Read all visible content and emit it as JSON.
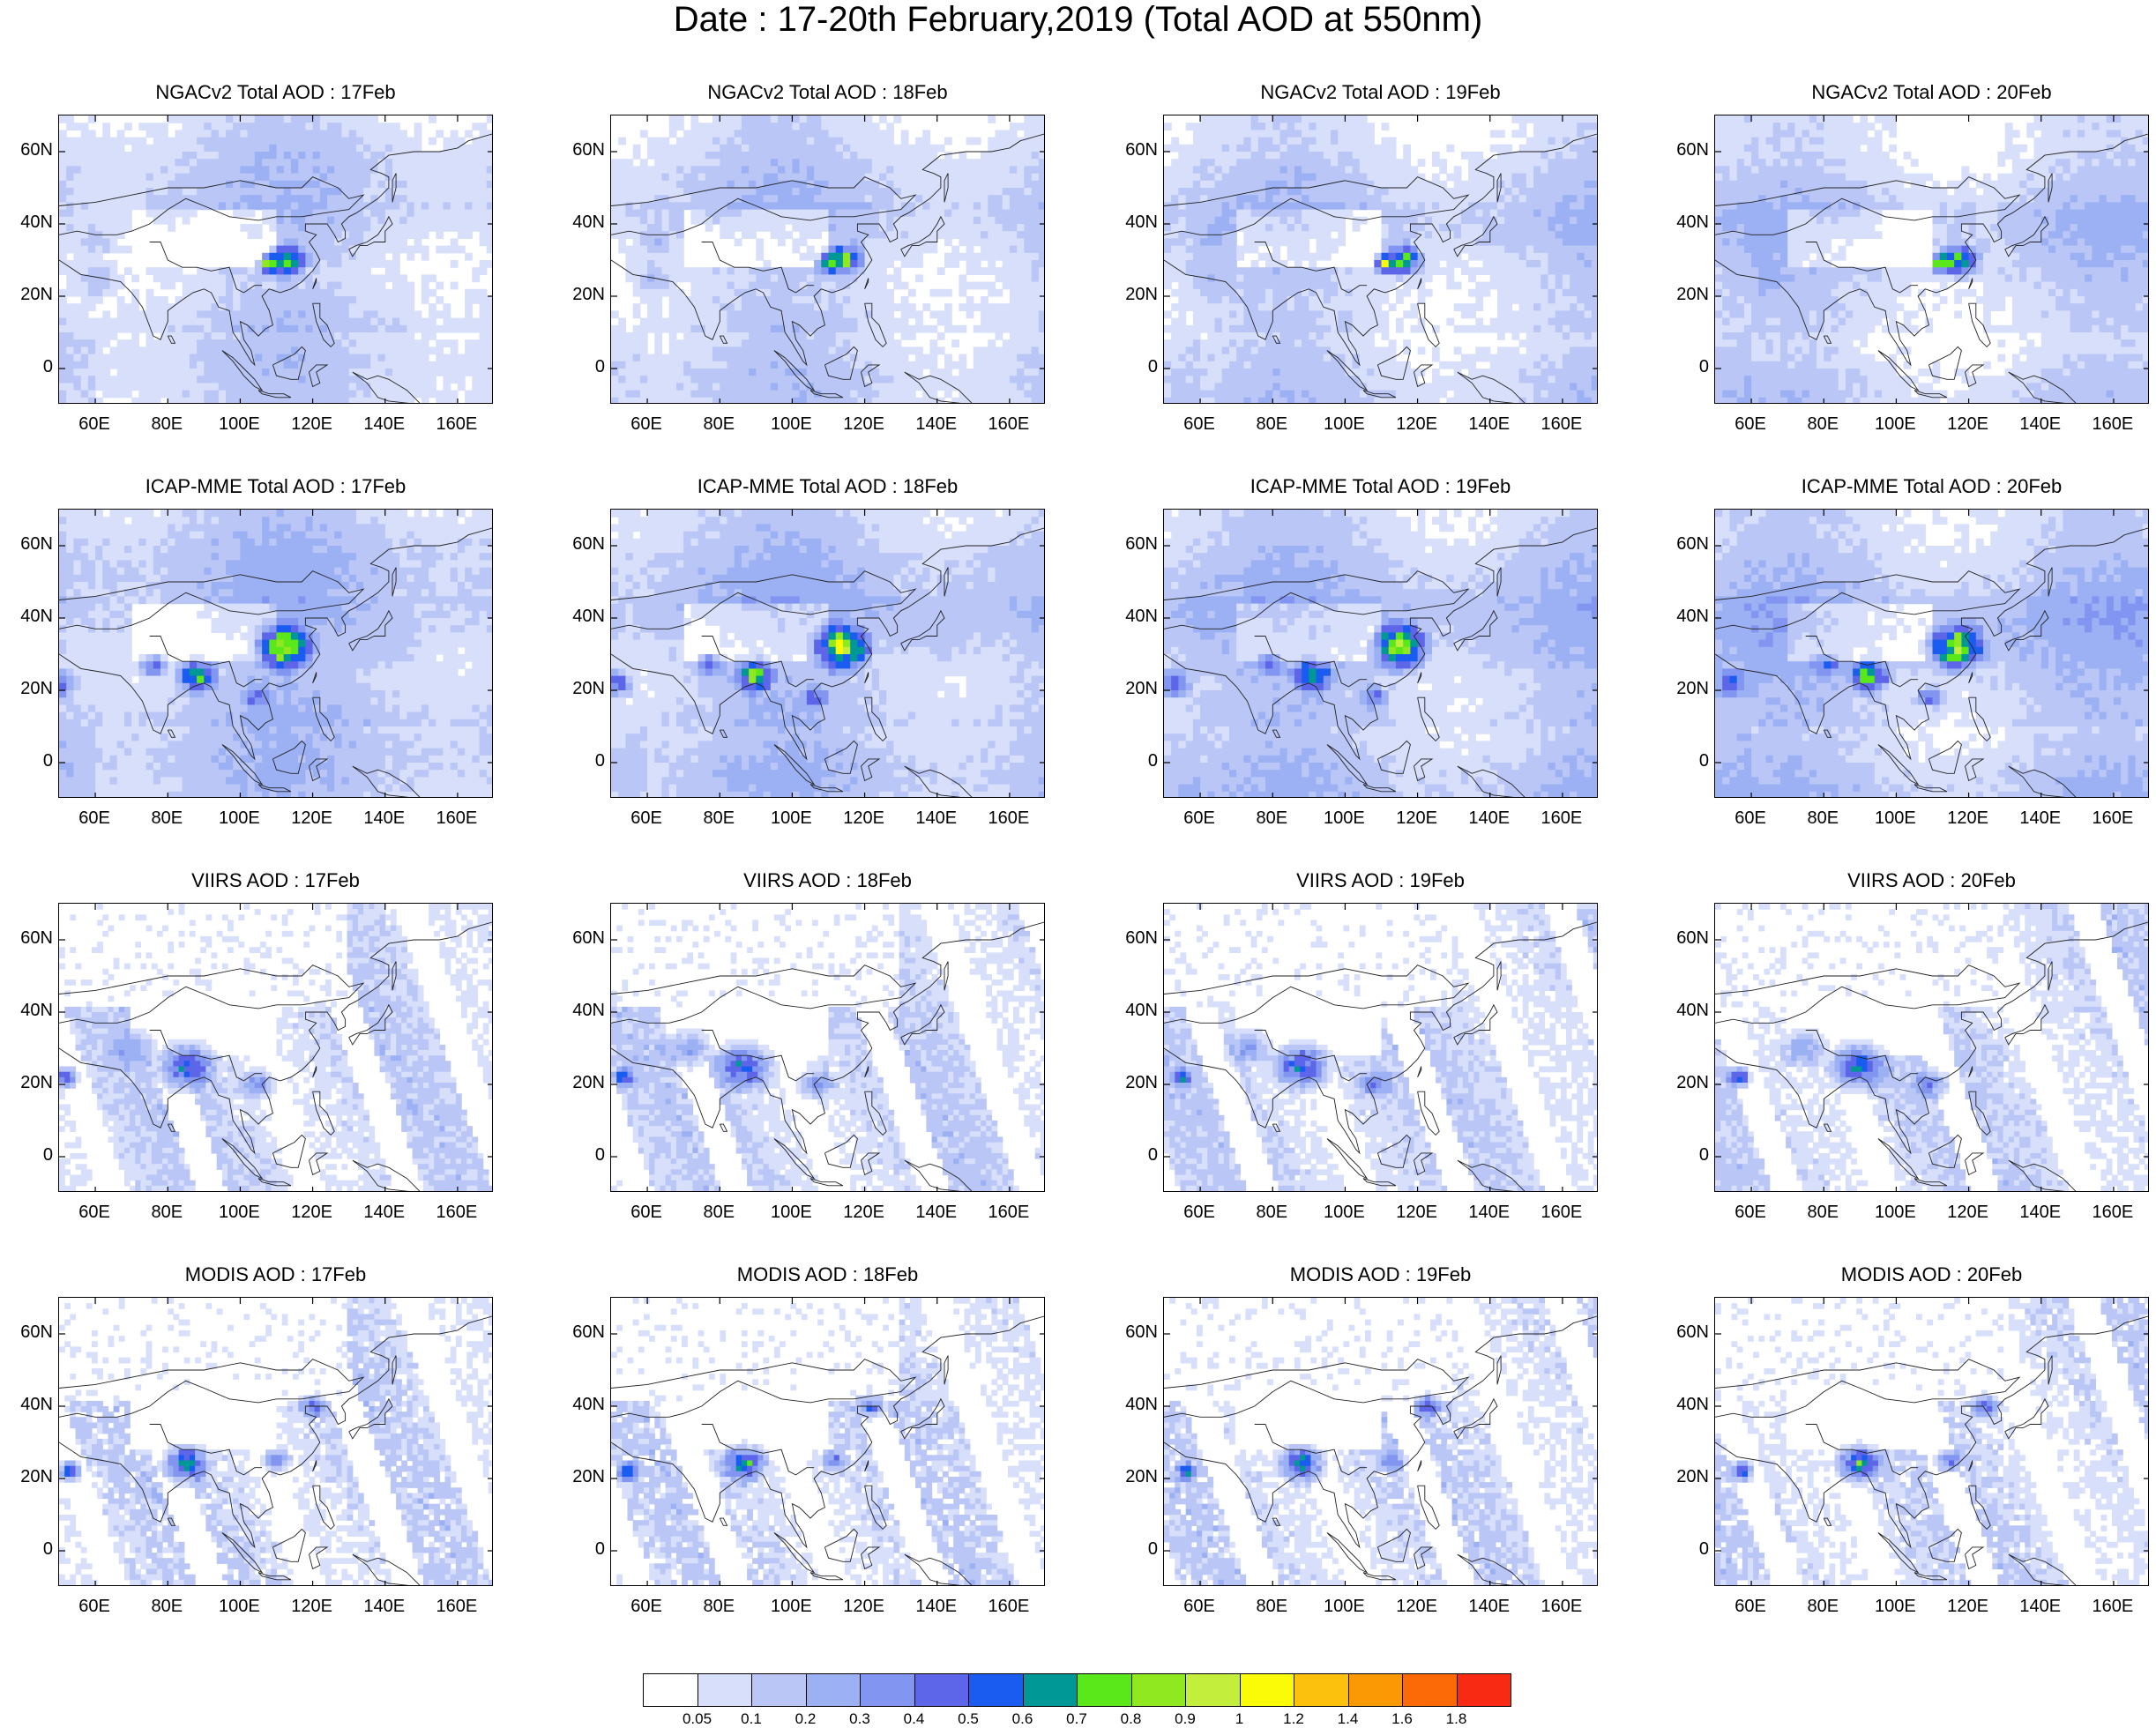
{
  "title": "Date : 17-20th February,2019 (Total AOD at 550nm)",
  "rows": [
    {
      "source": "NGACv2",
      "panels": [
        "NGACv2 Total AOD : 17Feb",
        "NGACv2 Total AOD : 18Feb",
        "NGACv2 Total AOD : 19Feb",
        "NGACv2 Total AOD : 20Feb"
      ],
      "style": "model"
    },
    {
      "source": "ICAP-MME",
      "panels": [
        "ICAP-MME Total AOD : 17Feb",
        "ICAP-MME Total AOD : 18Feb",
        "ICAP-MME Total AOD : 19Feb",
        "ICAP-MME Total AOD : 20Feb"
      ],
      "style": "model-strong"
    },
    {
      "source": "VIIRS",
      "panels": [
        "VIIRS AOD : 17Feb",
        "VIIRS AOD : 18Feb",
        "VIIRS AOD : 19Feb",
        "VIIRS AOD : 20Feb"
      ],
      "style": "satellite"
    },
    {
      "source": "MODIS",
      "panels": [
        "MODIS AOD : 17Feb",
        "MODIS AOD : 18Feb",
        "MODIS AOD : 19Feb",
        "MODIS AOD : 20Feb"
      ],
      "style": "satellite-coarse"
    }
  ],
  "map_extent": {
    "lon": [
      50,
      170
    ],
    "lat": [
      -10,
      70
    ]
  },
  "lat_ticks": [
    {
      "value": 60,
      "label": "60N"
    },
    {
      "value": 40,
      "label": "40N"
    },
    {
      "value": 20,
      "label": "20N"
    },
    {
      "value": 0,
      "label": "0"
    }
  ],
  "lon_ticks": [
    {
      "value": 60,
      "label": "60E"
    },
    {
      "value": 80,
      "label": "80E"
    },
    {
      "value": 100,
      "label": "100E"
    },
    {
      "value": 120,
      "label": "120E"
    },
    {
      "value": 140,
      "label": "140E"
    },
    {
      "value": 160,
      "label": "160E"
    }
  ],
  "colorbar": {
    "colors": [
      "#ffffff",
      "#d7dffb",
      "#b9c6f6",
      "#9cb0f4",
      "#8296f1",
      "#5d66e8",
      "#1b5cf0",
      "#009896",
      "#5be81a",
      "#90e820",
      "#c3ef3c",
      "#fbfb08",
      "#fbc10c",
      "#fb9904",
      "#fb6a06",
      "#f92a14"
    ],
    "labels": [
      "0.05",
      "0.1",
      "0.2",
      "0.3",
      "0.4",
      "0.5",
      "0.6",
      "0.7",
      "0.8",
      "0.9",
      "1",
      "1.2",
      "1.4",
      "1.6",
      "1.8"
    ]
  }
}
